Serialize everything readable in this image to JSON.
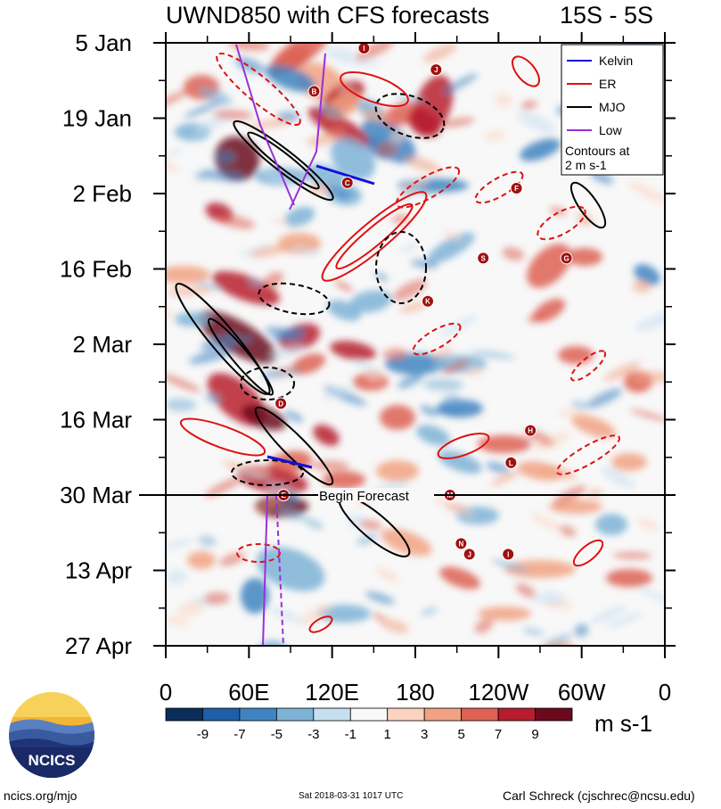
{
  "chart_data": {
    "type": "heatmap",
    "title": "UWND850 with CFS forecasts",
    "region": "15S - 5S",
    "xlabel": "",
    "ylabel": "",
    "x_tick_labels": [
      "0",
      "60E",
      "120E",
      "180",
      "120W",
      "60W",
      "0"
    ],
    "x_range_degrees_east": [
      0,
      360
    ],
    "y_tick_labels": [
      "5 Jan",
      "19 Jan",
      "2 Feb",
      "16 Feb",
      "2 Mar",
      "16 Mar",
      "30 Mar",
      "13 Apr",
      "27 Apr"
    ],
    "y_range_days": [
      "5 Jan",
      "27 Apr"
    ],
    "forecast_line": {
      "label": "Begin Forecast",
      "date": "30 Mar"
    },
    "units": "m s-1",
    "colorbar": {
      "labels": [
        "-9",
        "-7",
        "-5",
        "-3",
        "-1",
        "1",
        "3",
        "5",
        "7",
        "9"
      ],
      "colors": [
        "#0b2d5c",
        "#1f5ea8",
        "#3f84c1",
        "#7eb3d6",
        "#c6dff0",
        "#f8f8f8",
        "#fbd3c0",
        "#f1a283",
        "#dd6254",
        "#b71c2f",
        "#6b0a1c"
      ]
    },
    "legend": {
      "placement": "top-right",
      "entries": [
        {
          "name": "Kelvin",
          "color": "#1010d8"
        },
        {
          "name": "ER",
          "color": "#e01010"
        },
        {
          "name": "MJO",
          "color": "#000000"
        },
        {
          "name": "Low",
          "color": "#9a30d8"
        }
      ],
      "note": "Contours at\n2 m s-1"
    },
    "storm_markers": [
      {
        "letter": "I",
        "lon": 143,
        "day": 1
      },
      {
        "letter": "J",
        "lon": 195,
        "day": 5
      },
      {
        "letter": "B",
        "lon": 107,
        "day": 9
      },
      {
        "letter": "C",
        "lon": 131,
        "day": 26
      },
      {
        "letter": "F",
        "lon": 253,
        "day": 27
      },
      {
        "letter": "S",
        "lon": 229,
        "day": 40
      },
      {
        "letter": "G",
        "lon": 289,
        "day": 40
      },
      {
        "letter": "K",
        "lon": 189,
        "day": 48
      },
      {
        "letter": "D",
        "lon": 83,
        "day": 67
      },
      {
        "letter": "H",
        "lon": 263,
        "day": 72
      },
      {
        "letter": "L",
        "lon": 249,
        "day": 78
      },
      {
        "letter": "E",
        "lon": 85,
        "day": 84
      },
      {
        "letter": "M",
        "lon": 205,
        "day": 84
      },
      {
        "letter": "N",
        "lon": 213,
        "day": 93
      },
      {
        "letter": "J",
        "lon": 219,
        "day": 95
      },
      {
        "letter": "I",
        "lon": 247,
        "day": 95
      }
    ]
  },
  "footer": {
    "site": "ncics.org/mjo",
    "timestamp": "Sat 2018-03-31 1017 UTC",
    "author": "Carl Schreck (cjschrec@ncsu.edu)",
    "logo_text": "NCICS"
  }
}
